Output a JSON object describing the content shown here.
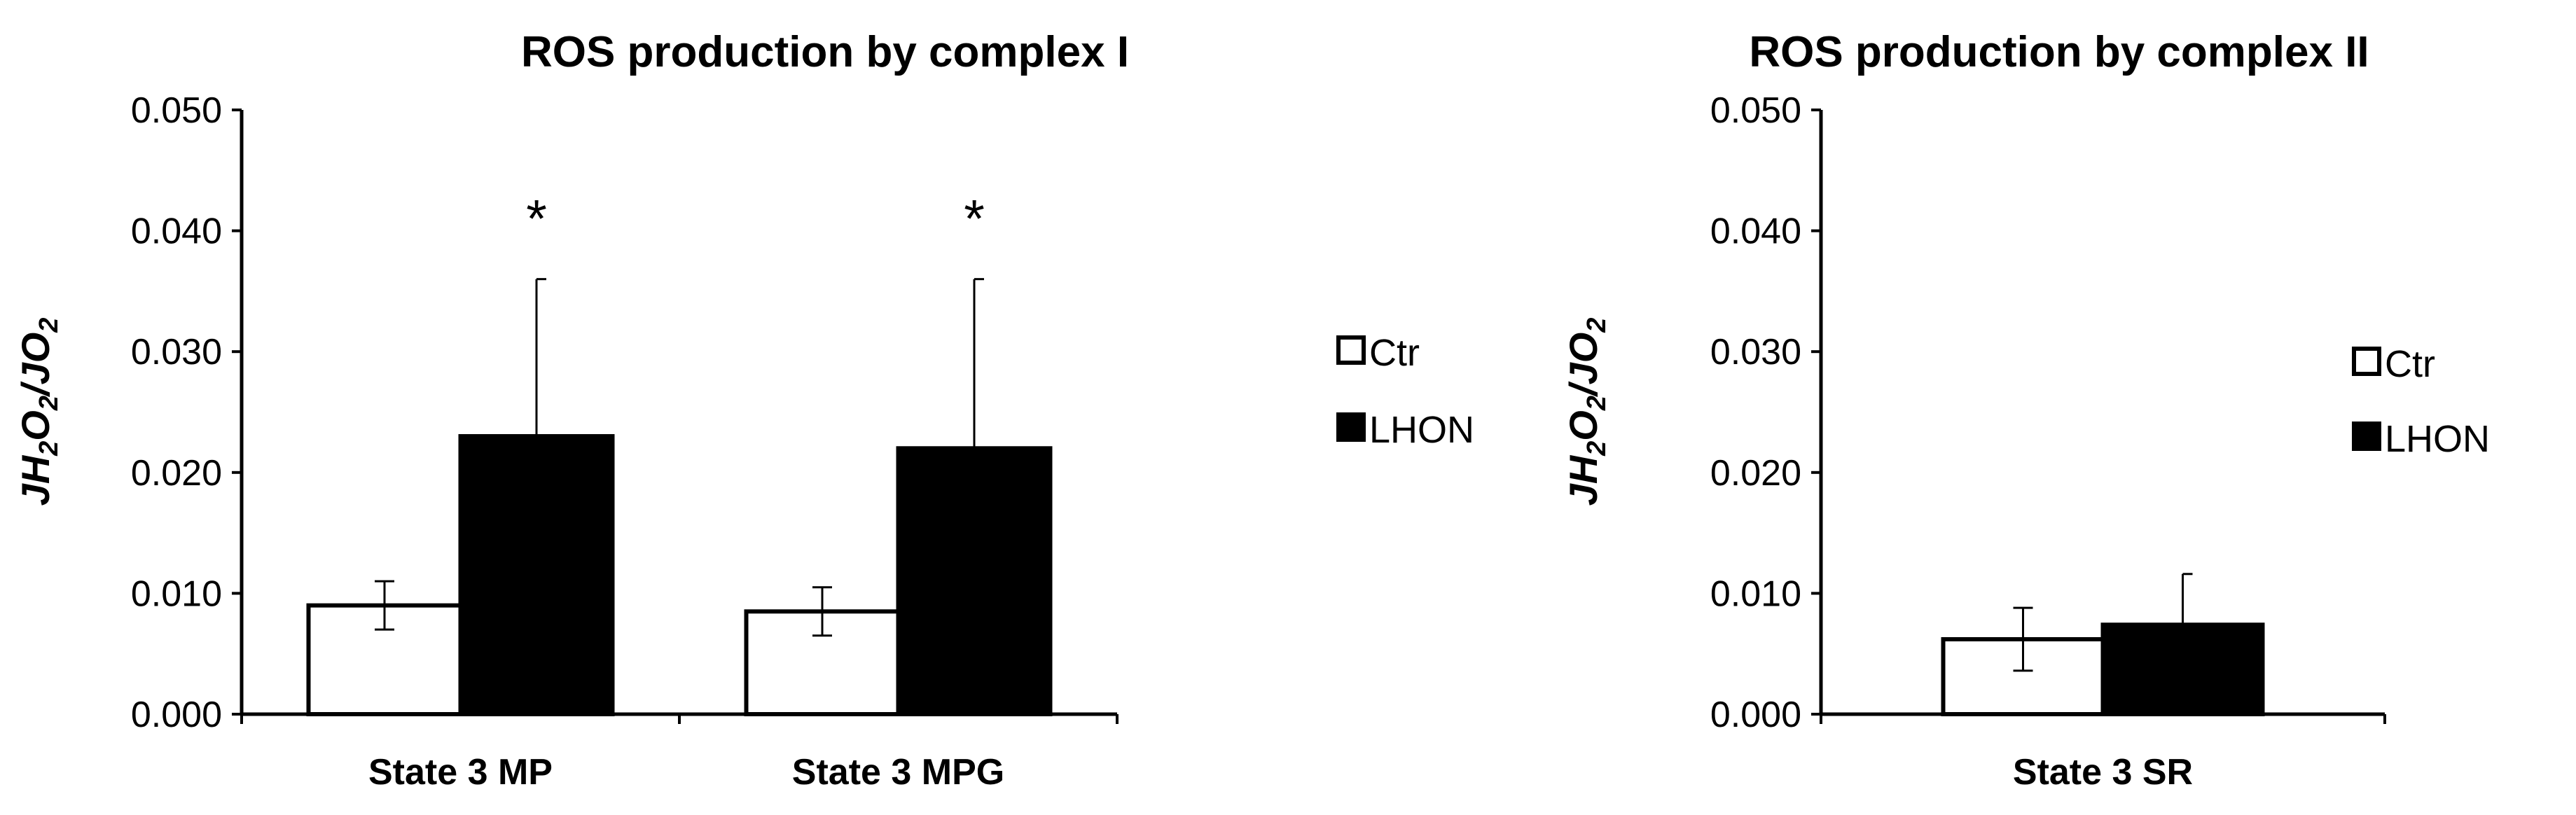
{
  "colors": {
    "ctr_fill": "#ffffff",
    "lhon_fill": "#000000",
    "axis": "#000000"
  },
  "legend": [
    {
      "key": "ctr",
      "label": "Ctr"
    },
    {
      "key": "lhon",
      "label": "LHON"
    }
  ],
  "chart_data": [
    {
      "type": "bar",
      "title": "ROS production by complex I",
      "ylabel": "JH2O2/JO2",
      "xlabel": "",
      "ylim": [
        0,
        0.05
      ],
      "yticks": [
        "0.000",
        "0.010",
        "0.020",
        "0.030",
        "0.040",
        "0.050"
      ],
      "categories": [
        "State 3 MP",
        "State 3 MPG"
      ],
      "series": [
        {
          "name": "Ctr",
          "values": [
            0.009,
            0.0085
          ],
          "errors": [
            0.002,
            0.002
          ]
        },
        {
          "name": "LHON",
          "values": [
            0.023,
            0.022
          ],
          "errors": [
            0.013,
            0.014
          ]
        }
      ],
      "annotations": [
        "*",
        "*"
      ],
      "legend_position": "right",
      "grid": false
    },
    {
      "type": "bar",
      "title": "ROS production by complex II",
      "ylabel": "JH2O2/JO2",
      "xlabel": "",
      "ylim": [
        0,
        0.05
      ],
      "yticks": [
        "0.000",
        "0.010",
        "0.020",
        "0.030",
        "0.040",
        "0.050"
      ],
      "categories": [
        "State 3 SR"
      ],
      "series": [
        {
          "name": "Ctr",
          "values": [
            0.0062
          ],
          "errors": [
            0.0026
          ]
        },
        {
          "name": "LHON",
          "values": [
            0.0074
          ],
          "errors": [
            0.0042
          ]
        }
      ],
      "annotations": [],
      "legend_position": "right",
      "grid": false
    }
  ]
}
